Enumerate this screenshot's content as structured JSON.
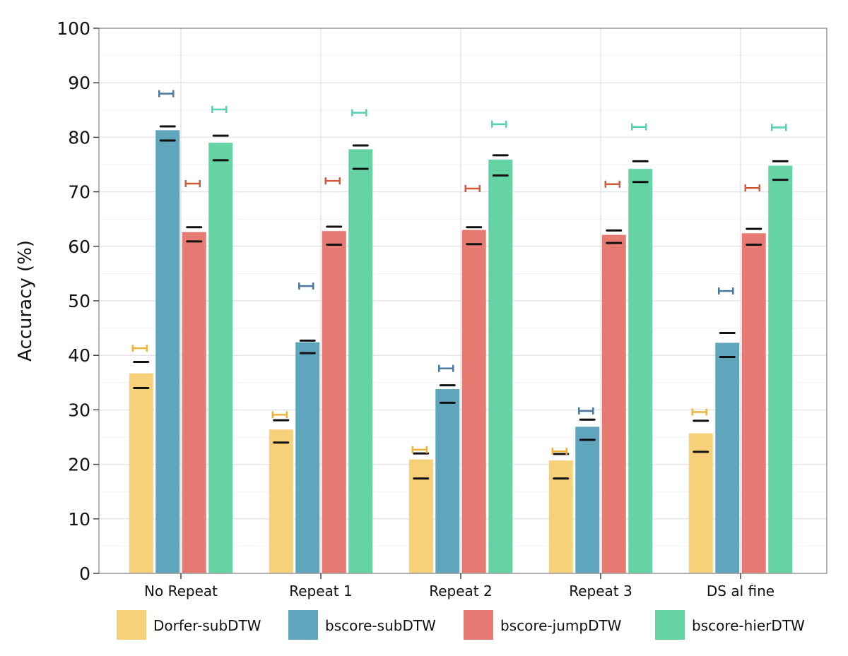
{
  "chart_data": {
    "type": "bar",
    "title": "",
    "xlabel": "",
    "ylabel": "Accuracy (%)",
    "ylim": [
      0,
      100
    ],
    "yticks": [
      0,
      10,
      20,
      30,
      40,
      50,
      60,
      70,
      80,
      90,
      100
    ],
    "grid": true,
    "legend_position": "bottom",
    "categories": [
      "No Repeat",
      "Repeat 1",
      "Repeat 2",
      "Repeat 3",
      "DS al fine"
    ],
    "series": [
      {
        "name": "Dorfer-subDTW",
        "color": "#f7d07a",
        "range_color": "#f0b43e",
        "values": [
          36.7,
          26.4,
          20.9,
          20.7,
          25.7
        ],
        "error_high": [
          38.8,
          28.1,
          22.0,
          21.9,
          28.0
        ],
        "error_low": [
          34.0,
          24.0,
          17.4,
          17.4,
          22.3
        ],
        "range_marker": [
          41.3,
          29.1,
          22.7,
          22.4,
          29.6
        ]
      },
      {
        "name": "bscore-subDTW",
        "color": "#5fa6bd",
        "range_color": "#4a78a0",
        "values": [
          81.3,
          42.4,
          33.8,
          26.9,
          42.3
        ],
        "error_high": [
          82.0,
          42.7,
          34.5,
          28.2,
          44.1
        ],
        "error_low": [
          79.4,
          40.4,
          31.3,
          24.5,
          39.7
        ],
        "range_marker": [
          88.0,
          52.7,
          37.6,
          29.8,
          51.8
        ]
      },
      {
        "name": "bscore-jumpDTW",
        "color": "#e77a72",
        "range_color": "#d4583a",
        "values": [
          62.6,
          62.8,
          63.0,
          62.1,
          62.4
        ],
        "error_high": [
          63.5,
          63.6,
          63.5,
          62.9,
          63.2
        ],
        "error_low": [
          60.9,
          60.3,
          60.4,
          60.6,
          60.3
        ],
        "range_marker": [
          71.5,
          72.0,
          70.6,
          71.4,
          70.7
        ]
      },
      {
        "name": "bscore-hierDTW",
        "color": "#65d3a3",
        "range_color": "#4fd4b4",
        "values": [
          79.0,
          77.8,
          75.9,
          74.2,
          74.8
        ],
        "error_high": [
          80.3,
          78.5,
          76.7,
          75.6,
          75.6
        ],
        "error_low": [
          75.8,
          74.2,
          73.0,
          71.8,
          72.2
        ],
        "range_marker": [
          85.1,
          84.5,
          82.4,
          81.9,
          81.8
        ]
      }
    ]
  }
}
